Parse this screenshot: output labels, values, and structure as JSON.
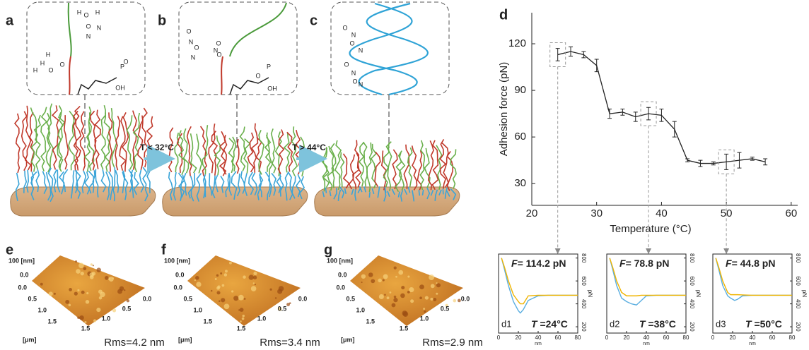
{
  "panels": [
    {
      "label": "a",
      "atoms": [
        "H",
        "O",
        "H",
        "O",
        "N",
        "H",
        "N",
        "H",
        "O",
        "H",
        "O",
        "P",
        "O",
        "OH"
      ]
    },
    {
      "label": "b",
      "atoms": [
        "O",
        "N",
        "O",
        "N",
        "O",
        "N",
        "O",
        "P",
        "O",
        "OH"
      ]
    },
    {
      "label": "c",
      "atoms": [
        "O",
        "N",
        "O",
        "N",
        "O",
        "N",
        "O",
        "N"
      ]
    }
  ],
  "transitions": [
    "T < 32°C",
    "T > 44°C"
  ],
  "afm": [
    {
      "label": "e",
      "z_label": "100 [nm]",
      "z_tick": "0.0",
      "y_ticks": [
        "0.0",
        "0.5",
        "1.0",
        "1.5"
      ],
      "x_ticks": [
        "0.0",
        "0.5",
        "1.0",
        "1.5"
      ],
      "unit": "[μm]",
      "rms": "Rms=4.2 nm"
    },
    {
      "label": "f",
      "z_label": "100 [nm]",
      "z_tick": "0.0",
      "y_ticks": [
        "0.0",
        "0.5",
        "1.0",
        "1.5"
      ],
      "x_ticks": [
        "0.0",
        "0.5",
        "1.0",
        "1.5"
      ],
      "unit": "[μm]",
      "rms": "Rms=3.4 nm"
    },
    {
      "label": "g",
      "z_label": "100 [nm]",
      "z_tick": "0.0",
      "y_ticks": [
        "0.0",
        "0.5",
        "1.0",
        "1.5"
      ],
      "x_ticks": [
        "0.0",
        "0.5",
        "1.0",
        "1.5"
      ],
      "unit": "[μm]",
      "rms": "Rms=2.9 nm"
    }
  ],
  "chart_data": [
    {
      "type": "line",
      "panel": "d",
      "x_label": "Temperature (°C)",
      "y_label": "Adhesion force (pN)",
      "color": "#222222",
      "x": [
        24,
        26,
        28,
        30,
        32,
        34,
        36,
        38,
        40,
        42,
        44,
        46,
        48,
        50,
        52,
        54,
        56
      ],
      "values": [
        113,
        115,
        113,
        106,
        75,
        76,
        73,
        75,
        74,
        65,
        45,
        43,
        43,
        44,
        45,
        46,
        44
      ],
      "errors": [
        4,
        3,
        2,
        4,
        3,
        2,
        3,
        4,
        4,
        5,
        1,
        2,
        1,
        5,
        5,
        1,
        2
      ],
      "xlim": [
        20,
        61
      ],
      "ylim": [
        16,
        140
      ],
      "xticks": [
        20,
        30,
        40,
        50,
        60
      ],
      "yticks": [
        30,
        60,
        90,
        120
      ]
    },
    {
      "type": "line",
      "panel": "d1",
      "force_symbol": "F",
      "force_text": "= 114.2 pN",
      "temp_symbol": "T",
      "temp_text": " =24°C",
      "x_label": "nm",
      "y_label": "pN",
      "x": [
        3,
        6,
        10,
        15,
        20,
        22,
        25,
        30,
        40,
        50,
        60,
        70,
        80
      ],
      "series": [
        {
          "color": "#5aaee0",
          "values": [
            800,
            700,
            560,
            420,
            340,
            320,
            350,
            430,
            470,
            475,
            475,
            475,
            475
          ]
        },
        {
          "color": "#f0b400",
          "values": [
            800,
            720,
            600,
            480,
            420,
            400,
            400,
            470,
            475,
            475,
            475,
            475,
            475
          ]
        }
      ],
      "xlim": [
        0,
        80
      ],
      "ylim": [
        145,
        835
      ],
      "xticks": [
        0,
        20,
        40,
        60,
        80
      ],
      "yticks": [
        200,
        400,
        600,
        800
      ]
    },
    {
      "type": "line",
      "panel": "d2",
      "force_symbol": "F",
      "force_text": "= 78.8 pN",
      "temp_symbol": "T",
      "temp_text": " =38°C",
      "x_label": "nm",
      "y_label": "pN",
      "x": [
        3,
        6,
        10,
        15,
        20,
        25,
        30,
        35,
        40,
        50,
        60,
        70,
        80
      ],
      "series": [
        {
          "color": "#5aaee0",
          "values": [
            800,
            700,
            560,
            450,
            420,
            400,
            390,
            430,
            470,
            475,
            475,
            475,
            475
          ]
        },
        {
          "color": "#f0b400",
          "values": [
            800,
            720,
            600,
            500,
            470,
            470,
            470,
            475,
            475,
            475,
            475,
            475,
            475
          ]
        }
      ],
      "xlim": [
        0,
        80
      ],
      "ylim": [
        145,
        835
      ],
      "xticks": [
        0,
        20,
        40,
        60,
        80
      ],
      "yticks": [
        200,
        400,
        600,
        800
      ]
    },
    {
      "type": "line",
      "panel": "d3",
      "force_symbol": "F",
      "force_text": "= 44.8 pN",
      "temp_symbol": "T",
      "temp_text": " =50°C",
      "x_label": "nm",
      "y_label": "pN",
      "x": [
        3,
        6,
        10,
        15,
        18,
        22,
        25,
        30,
        40,
        50,
        60,
        70,
        80
      ],
      "series": [
        {
          "color": "#5aaee0",
          "values": [
            800,
            700,
            560,
            470,
            450,
            430,
            440,
            470,
            475,
            475,
            475,
            475,
            475
          ]
        },
        {
          "color": "#f0b400",
          "values": [
            800,
            720,
            600,
            500,
            480,
            480,
            480,
            478,
            475,
            475,
            475,
            475,
            475
          ]
        }
      ],
      "xlim": [
        0,
        80
      ],
      "ylim": [
        145,
        835
      ],
      "xticks": [
        0,
        20,
        40,
        60,
        80
      ],
      "yticks": [
        200,
        400,
        600,
        800
      ]
    }
  ]
}
